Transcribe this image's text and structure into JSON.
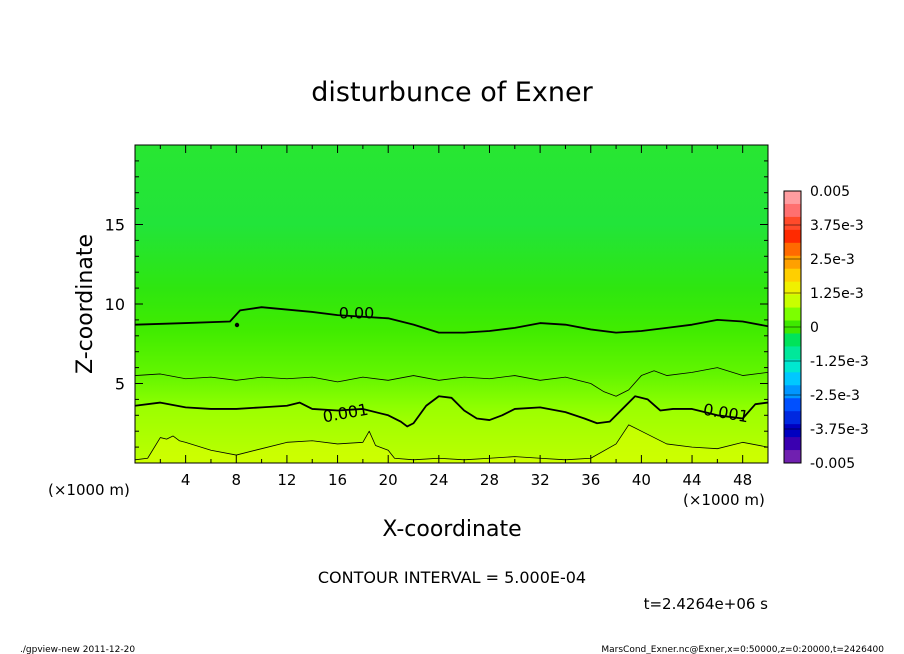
{
  "chart_data": {
    "type": "heatmap",
    "title": "disturbunce of Exner",
    "xlabel": "X-coordinate",
    "ylabel": "Z-coordinate",
    "x_unit_left": "(×1000 m)",
    "x_unit_right": "(×1000 m)",
    "xlim": [
      0,
      50
    ],
    "ylim": [
      0,
      20
    ],
    "x_ticks": [
      4,
      8,
      12,
      16,
      20,
      24,
      28,
      32,
      36,
      40,
      44,
      48
    ],
    "y_ticks": [
      5,
      10,
      15
    ],
    "colorbar": {
      "labels": [
        "0.005",
        "3.75e-3",
        "2.5e-3",
        "1.25e-3",
        "0",
        "-1.25e-3",
        "-2.5e-3",
        "-3.75e-3",
        "-0.005"
      ],
      "levels": [
        0.005,
        0.00375,
        0.0025,
        0.00125,
        0,
        -0.00125,
        -0.0025,
        -0.00375,
        -0.005
      ],
      "colors_top_to_bottom": [
        "#ff9da0",
        "#ff7070",
        "#ff4a2a",
        "#ff2a00",
        "#ff6a00",
        "#ffa000",
        "#ffcf00",
        "#f0f000",
        "#c8ff00",
        "#7cff00",
        "#3ee800",
        "#00e35a",
        "#00e89a",
        "#00e8d0",
        "#00c8ff",
        "#0096ff",
        "#0050ff",
        "#0028e0",
        "#0000c0",
        "#3a00b0",
        "#7020b0"
      ]
    },
    "contours": [
      {
        "label": "0.00",
        "level": 0.0,
        "style": "bold",
        "x": [
          0,
          4,
          7.5,
          8.3,
          10,
          14,
          16,
          18,
          20,
          22,
          24,
          26,
          28,
          30,
          32,
          34,
          36,
          38,
          40,
          42,
          44,
          46,
          48,
          50
        ],
        "y": [
          8.7,
          8.8,
          8.9,
          9.6,
          9.8,
          9.5,
          9.3,
          9.2,
          9.1,
          8.7,
          8.2,
          8.2,
          8.3,
          8.5,
          8.8,
          8.7,
          8.4,
          8.2,
          8.3,
          8.5,
          8.7,
          9.0,
          8.9,
          8.6
        ]
      },
      {
        "label": "0.001",
        "level": 0.001,
        "style": "bold",
        "x": [
          0,
          2,
          4,
          6,
          8,
          10,
          12,
          13,
          14,
          16,
          18,
          20,
          21,
          21.5,
          22,
          23,
          24,
          25,
          26,
          27,
          28,
          29,
          30,
          32,
          34,
          35.5,
          36.5,
          37.5,
          38.5,
          39.5,
          40.5,
          41.5,
          42.5,
          44,
          46,
          48,
          49,
          50
        ],
        "y": [
          3.6,
          3.8,
          3.5,
          3.4,
          3.4,
          3.5,
          3.6,
          3.8,
          3.4,
          3.3,
          3.4,
          3.0,
          2.6,
          2.3,
          2.5,
          3.6,
          4.2,
          4.1,
          3.3,
          2.8,
          2.7,
          3.0,
          3.4,
          3.5,
          3.2,
          2.8,
          2.5,
          2.6,
          3.4,
          4.2,
          4.0,
          3.3,
          3.4,
          3.4,
          3.0,
          2.8,
          3.7,
          3.8
        ]
      },
      {
        "label": "",
        "level": 0.0005,
        "style": "thin",
        "x": [
          0,
          2,
          4,
          6,
          8,
          10,
          12,
          14,
          16,
          18,
          20,
          22,
          24,
          26,
          28,
          30,
          32,
          34,
          36,
          37,
          38,
          39,
          40,
          41,
          42,
          44,
          46,
          48,
          50
        ],
        "y": [
          5.5,
          5.6,
          5.3,
          5.4,
          5.2,
          5.4,
          5.3,
          5.4,
          5.1,
          5.4,
          5.2,
          5.5,
          5.2,
          5.4,
          5.3,
          5.5,
          5.2,
          5.4,
          5.0,
          4.5,
          4.2,
          4.6,
          5.5,
          5.8,
          5.5,
          5.7,
          6.0,
          5.5,
          5.7
        ]
      },
      {
        "label": "",
        "level": 0.0015,
        "style": "thin",
        "x": [
          0,
          1,
          2,
          2.5,
          3,
          3.5,
          4,
          6,
          8,
          10,
          12,
          14,
          16,
          18,
          18.5,
          19,
          20,
          20.5,
          22,
          24,
          26,
          28,
          30,
          32,
          34,
          36,
          38,
          39,
          40,
          42,
          44,
          46,
          48,
          50
        ],
        "y": [
          0.2,
          0.3,
          1.6,
          1.5,
          1.7,
          1.4,
          1.3,
          0.8,
          0.5,
          0.9,
          1.3,
          1.4,
          1.2,
          1.3,
          2.0,
          1.1,
          0.8,
          0.3,
          0.2,
          0.3,
          0.2,
          0.3,
          0.4,
          0.3,
          0.2,
          0.3,
          1.2,
          2.4,
          2.0,
          1.2,
          1.0,
          0.9,
          1.3,
          1.0
        ]
      }
    ],
    "field_description_levels": [
      {
        "z_range": [
          0,
          2
        ],
        "value": 0.0012
      },
      {
        "z_range": [
          2,
          5
        ],
        "value": 0.0009
      },
      {
        "z_range": [
          5,
          9
        ],
        "value": 0.0003
      },
      {
        "z_range": [
          9,
          20
        ],
        "value": -0.0003
      }
    ]
  },
  "footer": {
    "contour_interval": "CONTOUR INTERVAL = 5.000E-04",
    "time_label": "t=2.4264e+06 s",
    "left_meta": "./gpview-new   2011-12-20",
    "right_meta": "MarsCond_Exner.nc@Exner,x=0:50000,z=0:20000,t=2426400"
  },
  "colors": {
    "frame": "#000000",
    "band_bottom": "#c8ff00",
    "band_lower": "#9cff00",
    "band_mid": "#58f000",
    "band_upper": "#30ea00",
    "band_top": "#22e83a"
  }
}
